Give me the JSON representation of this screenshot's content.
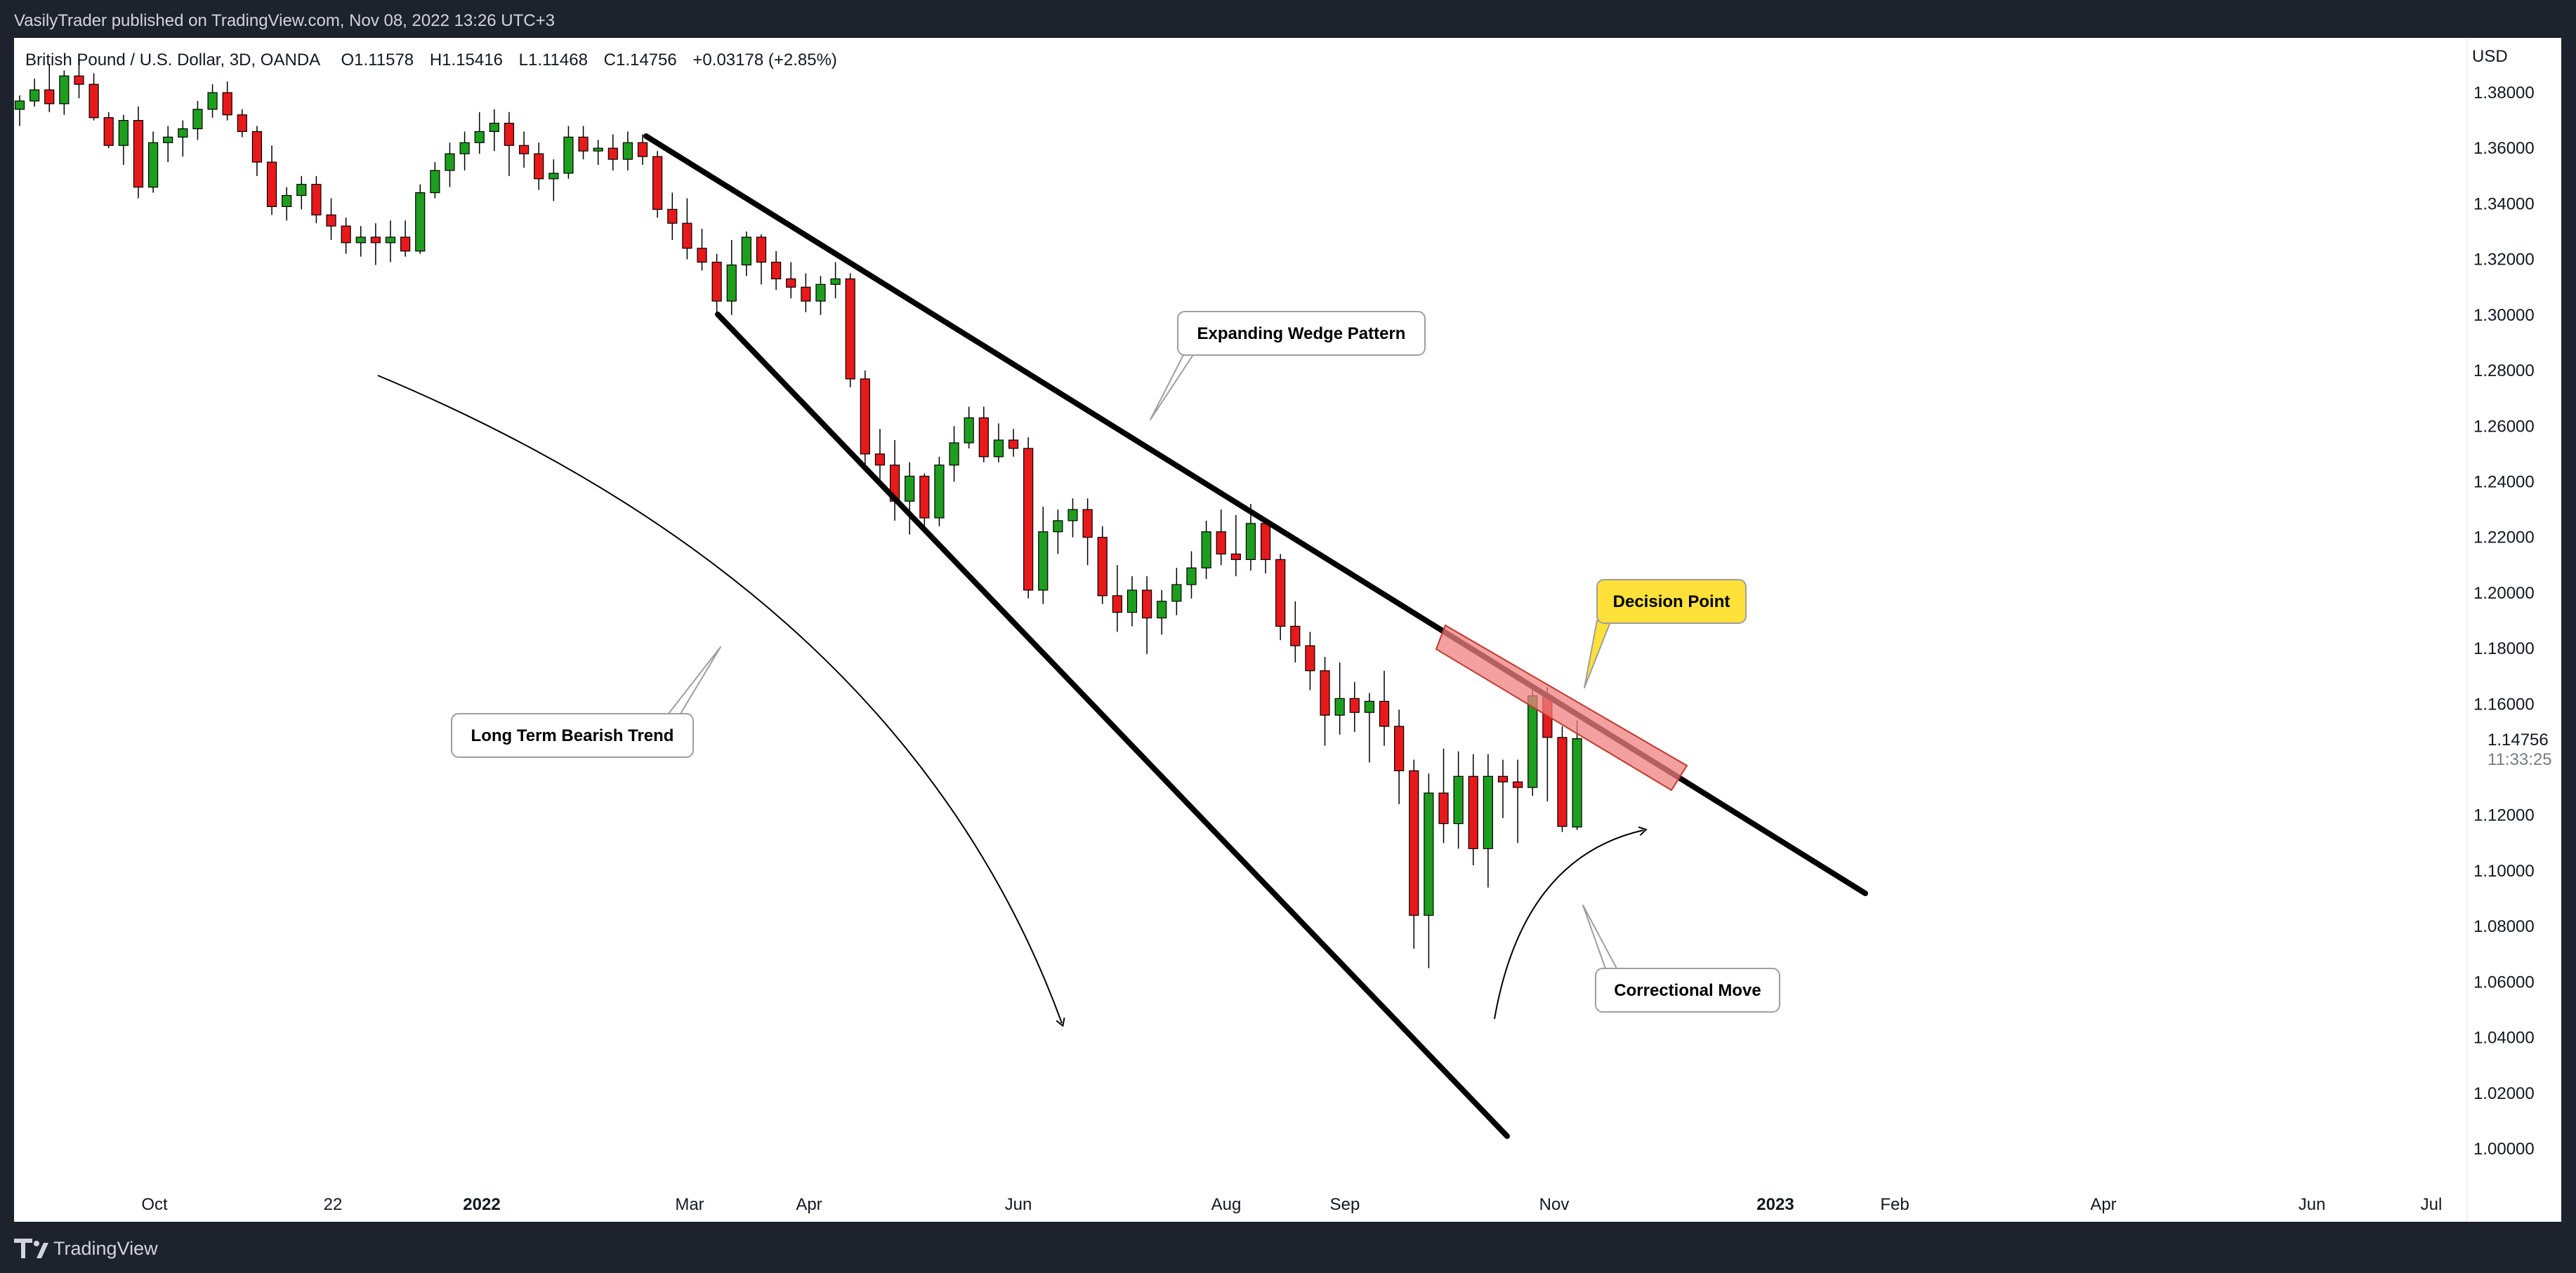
{
  "header": {
    "publisher_text": "VasilyTrader published on TradingView.com, Nov 08, 2022 13:26 UTC+3"
  },
  "footer": {
    "brand": "TradingView"
  },
  "legend": {
    "symbol_text": "British Pound / U.S. Dollar, 3D, OANDA",
    "open_label": "O",
    "open": "1.11578",
    "high_label": "H",
    "high": "1.15416",
    "low_label": "L",
    "low": "1.11468",
    "close_label": "C",
    "close": "1.14756",
    "change": "+0.03178 (+2.85%)"
  },
  "price_scale": {
    "currency": "USD",
    "last_price": "1.14756",
    "countdown": "11:33:25"
  },
  "colors": {
    "frame_bg": "#1e222d",
    "chart_bg": "#ffffff",
    "up": "#1e9e1e",
    "down": "#e8191b",
    "line": "#000000",
    "zone_fill": "#f08080",
    "callout_yellow": "#ffe13a"
  },
  "annotations": {
    "wedge_label": "Expanding Wedge Pattern",
    "decision_label": "Decision Point",
    "trend_label": "Long Term Bearish Trend",
    "correction_label": "Correctional Move"
  },
  "chart_data": {
    "type": "candlestick",
    "symbol": "British Pound / U.S. Dollar",
    "timeframe": "3D",
    "yaxis": {
      "ticks": [
        "1.38000",
        "1.36000",
        "1.34000",
        "1.32000",
        "1.30000",
        "1.28000",
        "1.26000",
        "1.24000",
        "1.22000",
        "1.20000",
        "1.18000",
        "1.16000",
        "1.12000",
        "1.10000",
        "1.08000",
        "1.06000",
        "1.04000",
        "1.02000",
        "1.00000"
      ],
      "range": [
        0.99,
        1.39
      ]
    },
    "xaxis": {
      "ticks": [
        {
          "label": "Oct",
          "bold": false
        },
        {
          "label": "22",
          "bold": false
        },
        {
          "label": "2022",
          "bold": true
        },
        {
          "label": "Mar",
          "bold": false
        },
        {
          "label": "Apr",
          "bold": false
        },
        {
          "label": "Jun",
          "bold": false
        },
        {
          "label": "Aug",
          "bold": false
        },
        {
          "label": "Sep",
          "bold": false
        },
        {
          "label": "Nov",
          "bold": false
        },
        {
          "label": "2023",
          "bold": true
        },
        {
          "label": "Feb",
          "bold": false
        },
        {
          "label": "Apr",
          "bold": false
        },
        {
          "label": "Jun",
          "bold": false
        },
        {
          "label": "Jul",
          "bold": false
        }
      ]
    },
    "candles": [
      [
        1.374,
        1.379,
        1.368,
        1.377
      ],
      [
        1.377,
        1.385,
        1.375,
        1.381
      ],
      [
        1.381,
        1.39,
        1.373,
        1.376
      ],
      [
        1.376,
        1.388,
        1.372,
        1.386
      ],
      [
        1.386,
        1.392,
        1.378,
        1.383
      ],
      [
        1.383,
        1.387,
        1.37,
        1.371
      ],
      [
        1.371,
        1.373,
        1.36,
        1.361
      ],
      [
        1.361,
        1.372,
        1.354,
        1.37
      ],
      [
        1.37,
        1.375,
        1.342,
        1.346
      ],
      [
        1.346,
        1.366,
        1.344,
        1.362
      ],
      [
        1.362,
        1.368,
        1.355,
        1.364
      ],
      [
        1.364,
        1.37,
        1.357,
        1.367
      ],
      [
        1.367,
        1.377,
        1.363,
        1.374
      ],
      [
        1.374,
        1.383,
        1.371,
        1.38
      ],
      [
        1.38,
        1.384,
        1.37,
        1.372
      ],
      [
        1.372,
        1.374,
        1.364,
        1.366
      ],
      [
        1.366,
        1.368,
        1.35,
        1.355
      ],
      [
        1.355,
        1.361,
        1.336,
        1.339
      ],
      [
        1.339,
        1.346,
        1.334,
        1.343
      ],
      [
        1.343,
        1.35,
        1.338,
        1.347
      ],
      [
        1.347,
        1.35,
        1.333,
        1.336
      ],
      [
        1.336,
        1.342,
        1.327,
        1.332
      ],
      [
        1.332,
        1.335,
        1.322,
        1.326
      ],
      [
        1.326,
        1.332,
        1.321,
        1.328
      ],
      [
        1.328,
        1.333,
        1.318,
        1.326
      ],
      [
        1.326,
        1.334,
        1.319,
        1.328
      ],
      [
        1.328,
        1.334,
        1.321,
        1.323
      ],
      [
        1.323,
        1.347,
        1.322,
        1.344
      ],
      [
        1.344,
        1.355,
        1.342,
        1.352
      ],
      [
        1.352,
        1.362,
        1.346,
        1.358
      ],
      [
        1.358,
        1.366,
        1.352,
        1.362
      ],
      [
        1.362,
        1.373,
        1.358,
        1.366
      ],
      [
        1.366,
        1.374,
        1.359,
        1.369
      ],
      [
        1.369,
        1.373,
        1.35,
        1.361
      ],
      [
        1.361,
        1.366,
        1.353,
        1.358
      ],
      [
        1.358,
        1.362,
        1.345,
        1.349
      ],
      [
        1.349,
        1.356,
        1.341,
        1.351
      ],
      [
        1.351,
        1.368,
        1.349,
        1.364
      ],
      [
        1.364,
        1.368,
        1.356,
        1.359
      ],
      [
        1.359,
        1.363,
        1.354,
        1.36
      ],
      [
        1.36,
        1.365,
        1.352,
        1.356
      ],
      [
        1.356,
        1.366,
        1.352,
        1.362
      ],
      [
        1.362,
        1.365,
        1.354,
        1.357
      ],
      [
        1.357,
        1.359,
        1.335,
        1.338
      ],
      [
        1.338,
        1.344,
        1.327,
        1.333
      ],
      [
        1.333,
        1.342,
        1.32,
        1.324
      ],
      [
        1.324,
        1.331,
        1.316,
        1.319
      ],
      [
        1.319,
        1.322,
        1.3,
        1.305
      ],
      [
        1.305,
        1.327,
        1.3,
        1.318
      ],
      [
        1.318,
        1.33,
        1.314,
        1.328
      ],
      [
        1.328,
        1.329,
        1.311,
        1.319
      ],
      [
        1.319,
        1.323,
        1.309,
        1.313
      ],
      [
        1.313,
        1.319,
        1.306,
        1.31
      ],
      [
        1.31,
        1.315,
        1.301,
        1.305
      ],
      [
        1.305,
        1.314,
        1.3,
        1.311
      ],
      [
        1.311,
        1.319,
        1.306,
        1.313
      ],
      [
        1.313,
        1.315,
        1.274,
        1.277
      ],
      [
        1.277,
        1.28,
        1.246,
        1.25
      ],
      [
        1.25,
        1.259,
        1.24,
        1.246
      ],
      [
        1.246,
        1.255,
        1.226,
        1.233
      ],
      [
        1.233,
        1.247,
        1.221,
        1.242
      ],
      [
        1.242,
        1.243,
        1.222,
        1.227
      ],
      [
        1.227,
        1.249,
        1.224,
        1.246
      ],
      [
        1.246,
        1.26,
        1.24,
        1.254
      ],
      [
        1.254,
        1.267,
        1.252,
        1.263
      ],
      [
        1.263,
        1.267,
        1.247,
        1.249
      ],
      [
        1.249,
        1.261,
        1.247,
        1.255
      ],
      [
        1.255,
        1.259,
        1.249,
        1.252
      ],
      [
        1.252,
        1.256,
        1.198,
        1.201
      ],
      [
        1.201,
        1.231,
        1.196,
        1.222
      ],
      [
        1.222,
        1.23,
        1.214,
        1.226
      ],
      [
        1.226,
        1.234,
        1.22,
        1.23
      ],
      [
        1.23,
        1.234,
        1.21,
        1.22
      ],
      [
        1.22,
        1.224,
        1.196,
        1.199
      ],
      [
        1.199,
        1.21,
        1.186,
        1.193
      ],
      [
        1.193,
        1.206,
        1.188,
        1.201
      ],
      [
        1.201,
        1.206,
        1.178,
        1.191
      ],
      [
        1.191,
        1.201,
        1.185,
        1.197
      ],
      [
        1.197,
        1.209,
        1.192,
        1.203
      ],
      [
        1.203,
        1.215,
        1.198,
        1.209
      ],
      [
        1.209,
        1.226,
        1.205,
        1.222
      ],
      [
        1.222,
        1.23,
        1.21,
        1.214
      ],
      [
        1.214,
        1.228,
        1.206,
        1.212
      ],
      [
        1.212,
        1.232,
        1.208,
        1.225
      ],
      [
        1.225,
        1.227,
        1.207,
        1.212
      ],
      [
        1.212,
        1.214,
        1.183,
        1.188
      ],
      [
        1.188,
        1.197,
        1.175,
        1.181
      ],
      [
        1.181,
        1.186,
        1.165,
        1.172
      ],
      [
        1.172,
        1.177,
        1.145,
        1.156
      ],
      [
        1.156,
        1.175,
        1.149,
        1.162
      ],
      [
        1.162,
        1.168,
        1.15,
        1.157
      ],
      [
        1.157,
        1.164,
        1.139,
        1.161
      ],
      [
        1.161,
        1.172,
        1.145,
        1.152
      ],
      [
        1.152,
        1.158,
        1.124,
        1.136
      ],
      [
        1.136,
        1.14,
        1.072,
        1.084
      ],
      [
        1.084,
        1.135,
        1.065,
        1.128
      ],
      [
        1.128,
        1.144,
        1.11,
        1.117
      ],
      [
        1.117,
        1.143,
        1.108,
        1.134
      ],
      [
        1.134,
        1.142,
        1.102,
        1.108
      ],
      [
        1.108,
        1.142,
        1.094,
        1.134
      ],
      [
        1.134,
        1.14,
        1.119,
        1.132
      ],
      [
        1.132,
        1.14,
        1.11,
        1.13
      ],
      [
        1.13,
        1.165,
        1.127,
        1.163
      ],
      [
        1.163,
        1.166,
        1.125,
        1.148
      ],
      [
        1.148,
        1.152,
        1.114,
        1.116
      ],
      [
        1.11578,
        1.15416,
        1.11468,
        1.14756
      ]
    ]
  }
}
